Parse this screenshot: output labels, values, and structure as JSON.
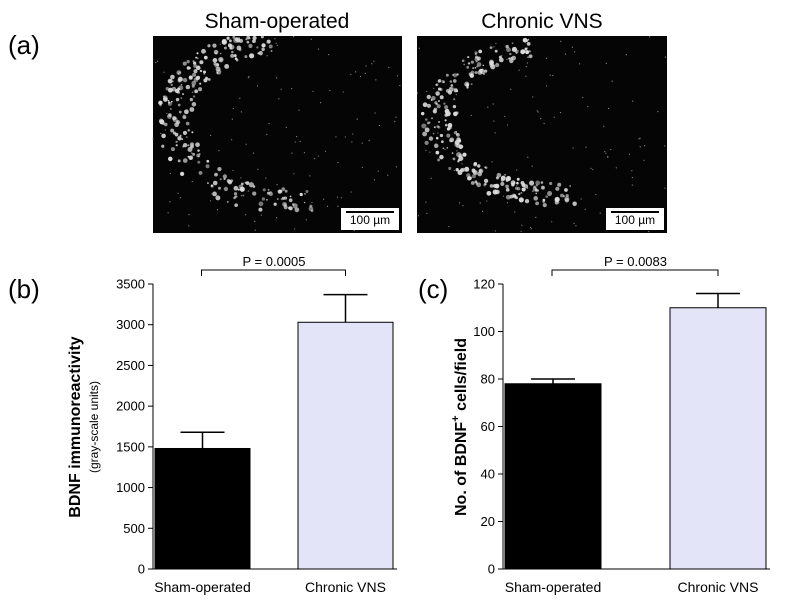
{
  "panel_a": {
    "label": "(a)",
    "images": [
      {
        "title": "Sham-operated",
        "scale_bar": "100 µm"
      },
      {
        "title": "Chronic VNS",
        "scale_bar": "100 µm"
      }
    ]
  },
  "chart_data": [
    {
      "type": "bar",
      "panel_label": "(b)",
      "y_label": [
        "BDNF immunoreactivity"
      ],
      "y_sublabel": "(gray-scale units)",
      "categories": [
        "Sham-operated",
        "Chronic VNS"
      ],
      "values": [
        1480,
        3030
      ],
      "errors": [
        200,
        340
      ],
      "colors": [
        "#000000",
        "#e4e4f8"
      ],
      "ylim": [
        0,
        3500
      ],
      "yticks": [
        0,
        500,
        1000,
        1500,
        2000,
        2500,
        3000,
        3500
      ],
      "annotation": "P = 0.0005"
    },
    {
      "type": "bar",
      "panel_label": "(c)",
      "y_label": [
        "No. of BDNF",
        "+",
        " cells/field"
      ],
      "categories": [
        "Sham-operated",
        "Chronic VNS"
      ],
      "values": [
        78,
        110
      ],
      "errors": [
        2,
        6
      ],
      "colors": [
        "#000000",
        "#e4e4f8"
      ],
      "ylim": [
        0,
        120
      ],
      "yticks": [
        0,
        20,
        40,
        60,
        80,
        100,
        120
      ],
      "annotation": "P = 0.0083"
    }
  ]
}
